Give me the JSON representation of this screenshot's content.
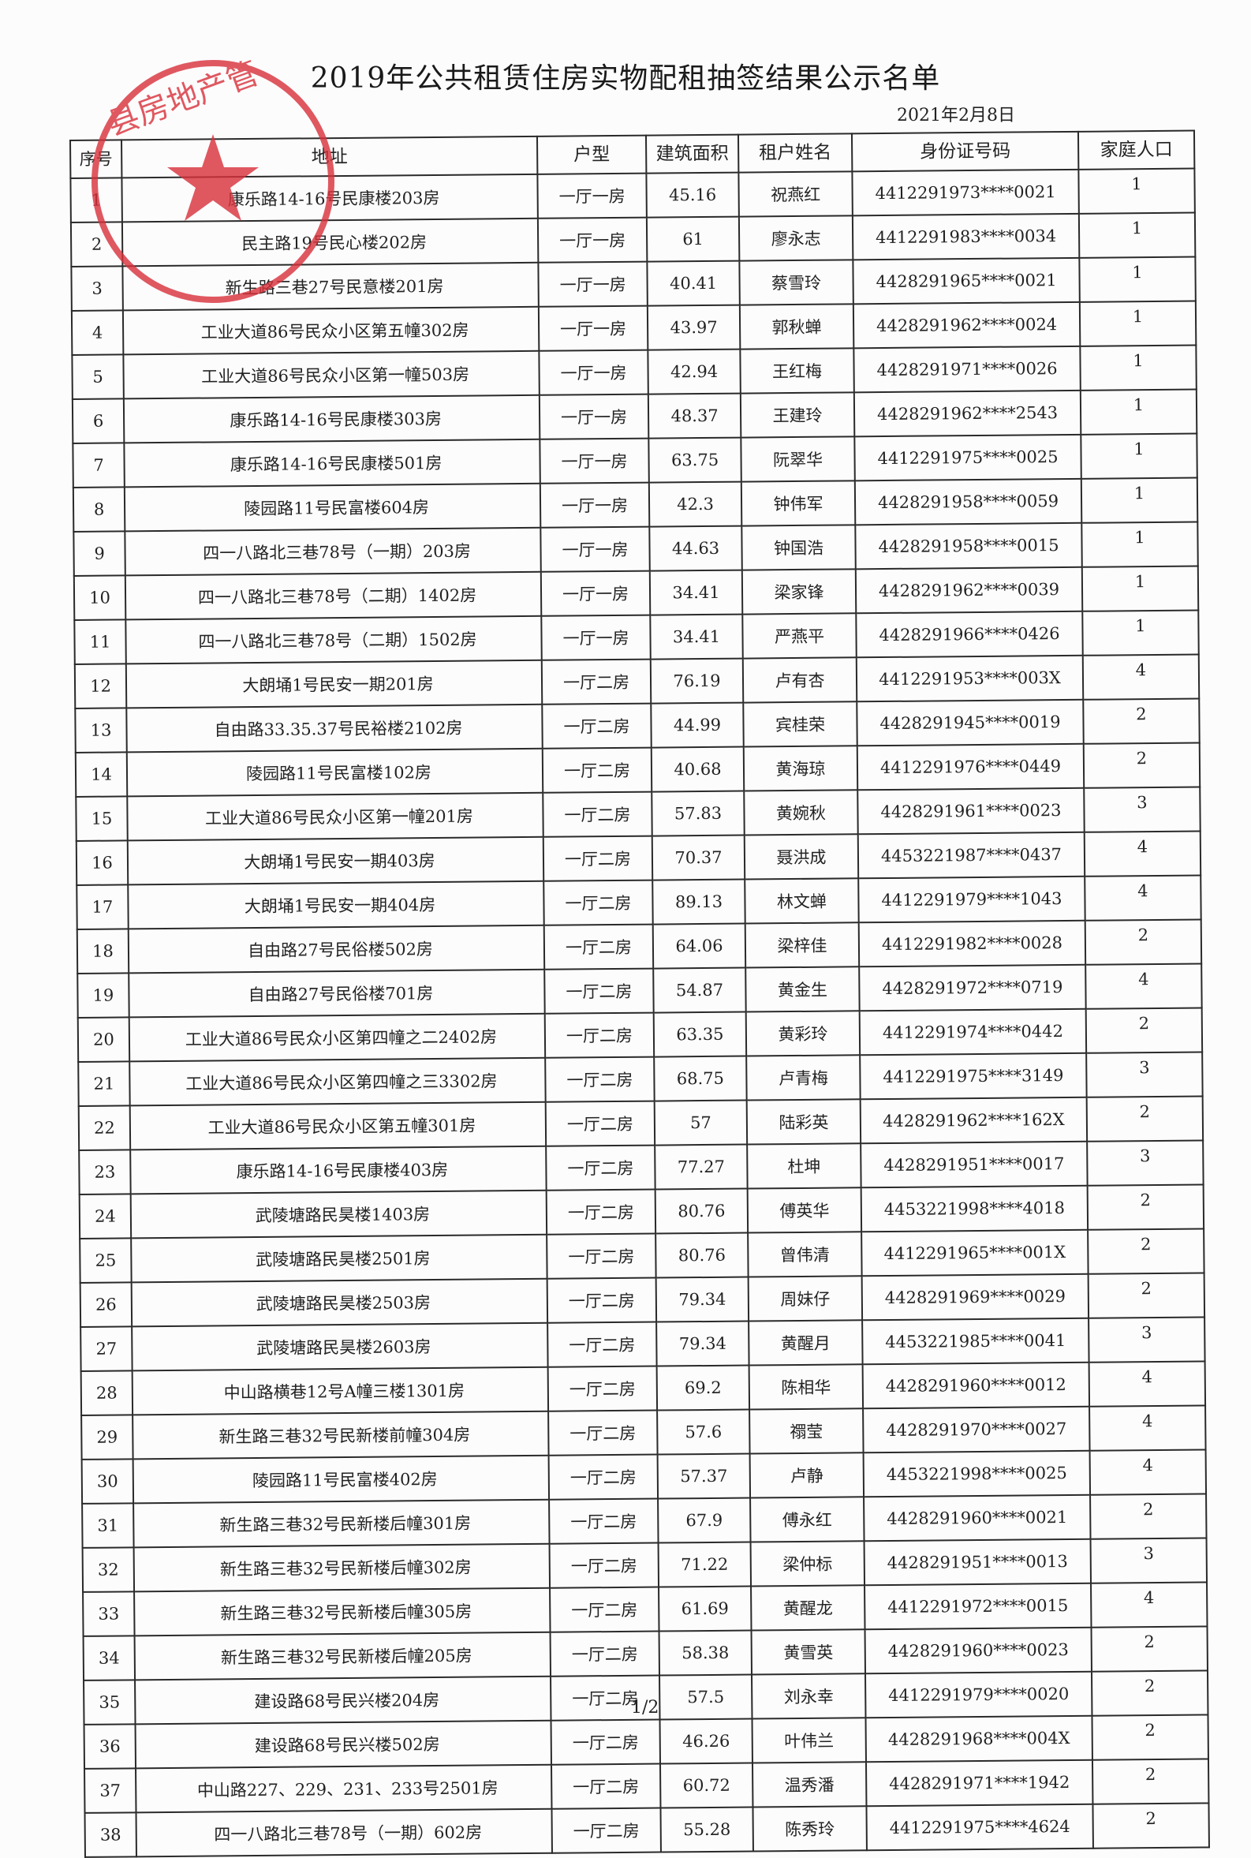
{
  "title": "2019年公共租赁住房实物配租抽签结果公示名单",
  "date": "2021年2月8日",
  "stamp_text": "县房地产管理局",
  "stamp_color": "#d9303a",
  "headers": {
    "seq": "序号",
    "address": "地址",
    "type": "户型",
    "area": "建筑面积",
    "name": "租户姓名",
    "id": "身份证号码",
    "family": "家庭人口"
  },
  "rows": [
    {
      "seq": "1",
      "address": "康乐路14-16号民康楼203房",
      "type": "一厅一房",
      "area": "45.16",
      "name": "祝燕红",
      "id": "4412291973****0021",
      "family": "1"
    },
    {
      "seq": "2",
      "address": "民主路19号民心楼202房",
      "type": "一厅一房",
      "area": "61",
      "name": "廖永志",
      "id": "4412291983****0034",
      "family": "1"
    },
    {
      "seq": "3",
      "address": "新生路三巷27号民意楼201房",
      "type": "一厅一房",
      "area": "40.41",
      "name": "蔡雪玲",
      "id": "4428291965****0021",
      "family": "1"
    },
    {
      "seq": "4",
      "address": "工业大道86号民众小区第五幢302房",
      "type": "一厅一房",
      "area": "43.97",
      "name": "郭秋蝉",
      "id": "4428291962****0024",
      "family": "1"
    },
    {
      "seq": "5",
      "address": "工业大道86号民众小区第一幢503房",
      "type": "一厅一房",
      "area": "42.94",
      "name": "王红梅",
      "id": "4428291971****0026",
      "family": "1"
    },
    {
      "seq": "6",
      "address": "康乐路14-16号民康楼303房",
      "type": "一厅一房",
      "area": "48.37",
      "name": "王建玲",
      "id": "4428291962****2543",
      "family": "1"
    },
    {
      "seq": "7",
      "address": "康乐路14-16号民康楼501房",
      "type": "一厅一房",
      "area": "63.75",
      "name": "阮翠华",
      "id": "4412291975****0025",
      "family": "1"
    },
    {
      "seq": "8",
      "address": "陵园路11号民富楼604房",
      "type": "一厅一房",
      "area": "42.3",
      "name": "钟伟军",
      "id": "4428291958****0059",
      "family": "1"
    },
    {
      "seq": "9",
      "address": "四一八路北三巷78号（一期）203房",
      "type": "一厅一房",
      "area": "44.63",
      "name": "钟国浩",
      "id": "4428291958****0015",
      "family": "1"
    },
    {
      "seq": "10",
      "address": "四一八路北三巷78号（二期）1402房",
      "type": "一厅一房",
      "area": "34.41",
      "name": "梁家锋",
      "id": "4428291962****0039",
      "family": "1"
    },
    {
      "seq": "11",
      "address": "四一八路北三巷78号（二期）1502房",
      "type": "一厅一房",
      "area": "34.41",
      "name": "严燕平",
      "id": "4428291966****0426",
      "family": "1"
    },
    {
      "seq": "12",
      "address": "大朗埇1号民安一期201房",
      "type": "一厅二房",
      "area": "76.19",
      "name": "卢有杏",
      "id": "4412291953****003X",
      "family": "4"
    },
    {
      "seq": "13",
      "address": "自由路33.35.37号民裕楼2102房",
      "type": "一厅二房",
      "area": "44.99",
      "name": "宾桂荣",
      "id": "4428291945****0019",
      "family": "2"
    },
    {
      "seq": "14",
      "address": "陵园路11号民富楼102房",
      "type": "一厅二房",
      "area": "40.68",
      "name": "黄海琼",
      "id": "4412291976****0449",
      "family": "2"
    },
    {
      "seq": "15",
      "address": "工业大道86号民众小区第一幢201房",
      "type": "一厅二房",
      "area": "57.83",
      "name": "黄婉秋",
      "id": "4428291961****0023",
      "family": "3"
    },
    {
      "seq": "16",
      "address": "大朗埇1号民安一期403房",
      "type": "一厅二房",
      "area": "70.37",
      "name": "聂洪成",
      "id": "4453221987****0437",
      "family": "4"
    },
    {
      "seq": "17",
      "address": "大朗埇1号民安一期404房",
      "type": "一厅二房",
      "area": "89.13",
      "name": "林文蝉",
      "id": "4412291979****1043",
      "family": "4"
    },
    {
      "seq": "18",
      "address": "自由路27号民俗楼502房",
      "type": "一厅二房",
      "area": "64.06",
      "name": "梁梓佳",
      "id": "4412291982****0028",
      "family": "2"
    },
    {
      "seq": "19",
      "address": "自由路27号民俗楼701房",
      "type": "一厅二房",
      "area": "54.87",
      "name": "黄金生",
      "id": "4428291972****0719",
      "family": "4"
    },
    {
      "seq": "20",
      "address": "工业大道86号民众小区第四幢之二2402房",
      "type": "一厅二房",
      "area": "63.35",
      "name": "黄彩玲",
      "id": "4412291974****0442",
      "family": "2"
    },
    {
      "seq": "21",
      "address": "工业大道86号民众小区第四幢之三3302房",
      "type": "一厅二房",
      "area": "68.75",
      "name": "卢青梅",
      "id": "4412291975****3149",
      "family": "3"
    },
    {
      "seq": "22",
      "address": "工业大道86号民众小区第五幢301房",
      "type": "一厅二房",
      "area": "57",
      "name": "陆彩英",
      "id": "4428291962****162X",
      "family": "2"
    },
    {
      "seq": "23",
      "address": "康乐路14-16号民康楼403房",
      "type": "一厅二房",
      "area": "77.27",
      "name": "杜坤",
      "id": "4428291951****0017",
      "family": "3"
    },
    {
      "seq": "24",
      "address": "武陵塘路民昊楼1403房",
      "type": "一厅二房",
      "area": "80.76",
      "name": "傅英华",
      "id": "4453221998****4018",
      "family": "2"
    },
    {
      "seq": "25",
      "address": "武陵塘路民昊楼2501房",
      "type": "一厅二房",
      "area": "80.76",
      "name": "曾伟清",
      "id": "4412291965****001X",
      "family": "2"
    },
    {
      "seq": "26",
      "address": "武陵塘路民昊楼2503房",
      "type": "一厅二房",
      "area": "79.34",
      "name": "周妹仔",
      "id": "4428291969****0029",
      "family": "2"
    },
    {
      "seq": "27",
      "address": "武陵塘路民昊楼2603房",
      "type": "一厅二房",
      "area": "79.34",
      "name": "黄醒月",
      "id": "4453221985****0041",
      "family": "3"
    },
    {
      "seq": "28",
      "address": "中山路横巷12号A幢三楼1301房",
      "type": "一厅二房",
      "area": "69.2",
      "name": "陈相华",
      "id": "4428291960****0012",
      "family": "4"
    },
    {
      "seq": "29",
      "address": "新生路三巷32号民新楼前幢304房",
      "type": "一厅二房",
      "area": "57.6",
      "name": "禤莹",
      "id": "4428291970****0027",
      "family": "4"
    },
    {
      "seq": "30",
      "address": "陵园路11号民富楼402房",
      "type": "一厅二房",
      "area": "57.37",
      "name": "卢静",
      "id": "4453221998****0025",
      "family": "4"
    },
    {
      "seq": "31",
      "address": "新生路三巷32号民新楼后幢301房",
      "type": "一厅二房",
      "area": "67.9",
      "name": "傅永红",
      "id": "4428291960****0021",
      "family": "2"
    },
    {
      "seq": "32",
      "address": "新生路三巷32号民新楼后幢302房",
      "type": "一厅二房",
      "area": "71.22",
      "name": "梁仲标",
      "id": "4428291951****0013",
      "family": "3"
    },
    {
      "seq": "33",
      "address": "新生路三巷32号民新楼后幢305房",
      "type": "一厅二房",
      "area": "61.69",
      "name": "黄醒龙",
      "id": "4412291972****0015",
      "family": "4"
    },
    {
      "seq": "34",
      "address": "新生路三巷32号民新楼后幢205房",
      "type": "一厅二房",
      "area": "58.38",
      "name": "黄雪英",
      "id": "4428291960****0023",
      "family": "2"
    },
    {
      "seq": "35",
      "address": "建设路68号民兴楼204房",
      "type": "一厅二房",
      "area": "57.5",
      "name": "刘永幸",
      "id": "4412291979****0020",
      "family": "2"
    },
    {
      "seq": "36",
      "address": "建设路68号民兴楼502房",
      "type": "一厅二房",
      "area": "46.26",
      "name": "叶伟兰",
      "id": "4428291968****004X",
      "family": "2"
    },
    {
      "seq": "37",
      "address": "中山路227、229、231、233号2501房",
      "type": "一厅二房",
      "area": "60.72",
      "name": "温秀潘",
      "id": "4428291971****1942",
      "family": "2"
    },
    {
      "seq": "38",
      "address": "四一八路北三巷78号（一期）602房",
      "type": "一厅二房",
      "area": "55.28",
      "name": "陈秀玲",
      "id": "4412291975****4624",
      "family": "2"
    }
  ],
  "page_number": "1/2"
}
